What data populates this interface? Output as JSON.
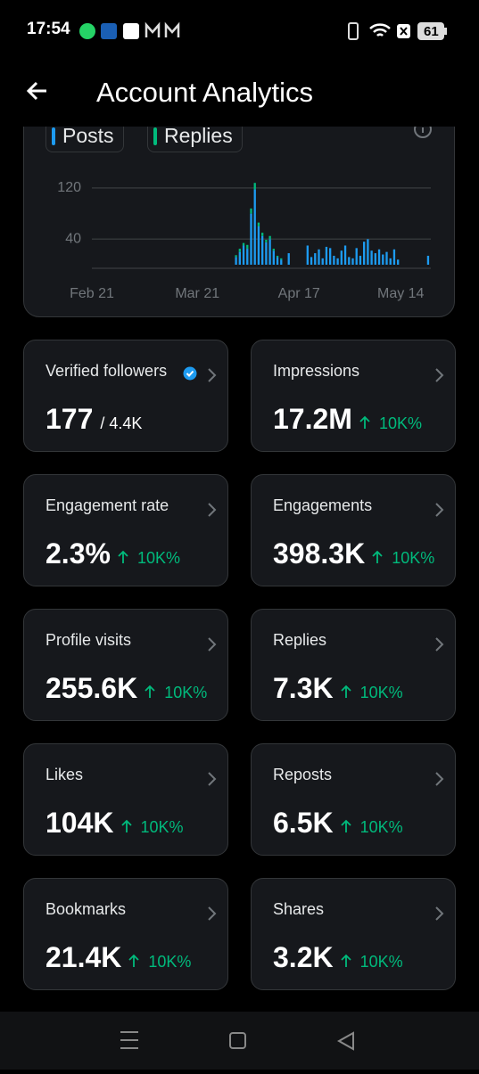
{
  "status_bar": {
    "time": "17:54",
    "battery": "61"
  },
  "header": {
    "title": "Account Analytics"
  },
  "chart_data": {
    "type": "bar",
    "stacked": true,
    "categories": [
      "Feb 21",
      null,
      null,
      null,
      null,
      null,
      null,
      null,
      null,
      null,
      null,
      null,
      null,
      null,
      null,
      null,
      null,
      null,
      null,
      null,
      null,
      null,
      null,
      null,
      null,
      null,
      null,
      null,
      "Mar 21",
      null,
      null,
      null,
      null,
      null,
      null,
      null,
      null,
      null,
      null,
      null,
      null,
      null,
      null,
      null,
      null,
      null,
      null,
      null,
      null,
      null,
      null,
      null,
      null,
      null,
      null,
      "Apr 17",
      null,
      null,
      null,
      null,
      null,
      null,
      null,
      null,
      null,
      null,
      null,
      null,
      null,
      null,
      null,
      null,
      null,
      null,
      null,
      null,
      null,
      null,
      null,
      null,
      null,
      null,
      "May 14",
      null,
      null,
      null,
      null,
      null,
      null,
      null
    ],
    "series": [
      {
        "name": "Posts",
        "color": "#1d9bf0",
        "values": [
          0,
          0,
          0,
          0,
          0,
          0,
          0,
          0,
          0,
          0,
          0,
          0,
          0,
          0,
          0,
          0,
          0,
          0,
          0,
          0,
          0,
          0,
          0,
          0,
          0,
          0,
          0,
          0,
          0,
          0,
          0,
          0,
          0,
          0,
          0,
          0,
          0,
          0,
          12,
          20,
          30,
          25,
          80,
          118,
          60,
          45,
          35,
          40,
          22,
          12,
          8,
          0,
          18,
          0,
          0,
          0,
          0,
          30,
          12,
          18,
          24,
          10,
          28,
          26,
          14,
          10,
          22,
          30,
          12,
          10,
          26,
          14,
          36,
          40,
          22,
          18,
          24,
          16,
          20,
          10,
          24,
          8,
          0,
          0,
          0,
          0,
          0,
          0,
          0,
          14
        ]
      },
      {
        "name": "Replies",
        "color": "#00ba7c",
        "values": [
          0,
          0,
          0,
          0,
          0,
          0,
          0,
          0,
          0,
          0,
          0,
          0,
          0,
          0,
          0,
          0,
          0,
          0,
          0,
          0,
          0,
          0,
          0,
          0,
          0,
          0,
          0,
          0,
          0,
          0,
          0,
          0,
          0,
          0,
          0,
          0,
          0,
          0,
          3,
          5,
          4,
          6,
          8,
          10,
          6,
          5,
          4,
          5,
          3,
          2,
          2,
          0,
          0,
          0,
          0,
          0,
          0,
          0,
          0,
          0,
          0,
          0,
          0,
          0,
          0,
          0,
          0,
          0,
          0,
          0,
          0,
          0,
          0,
          0,
          0,
          0,
          0,
          0,
          0,
          0,
          0,
          0,
          0,
          0,
          0,
          0,
          0,
          0,
          0,
          0
        ]
      }
    ],
    "ylim": [
      0,
      145
    ],
    "yticks": [
      40,
      120
    ],
    "grid": true
  },
  "metrics": [
    {
      "label": "Verified followers",
      "value": "177",
      "total": "/ 4.4K"
    },
    {
      "label": "Impressions",
      "value": "17.2M",
      "change": "10K%"
    },
    {
      "label": "Engagement rate",
      "value": "2.3%",
      "change": "10K%"
    },
    {
      "label": "Engagements",
      "value": "398.3K",
      "change": "10K%"
    },
    {
      "label": "Profile visits",
      "value": "255.6K",
      "change": "10K%"
    },
    {
      "label": "Replies",
      "value": "7.3K",
      "change": "10K%"
    },
    {
      "label": "Likes",
      "value": "104K",
      "change": "10K%"
    },
    {
      "label": "Reposts",
      "value": "6.5K",
      "change": "10K%"
    },
    {
      "label": "Bookmarks",
      "value": "21.4K",
      "change": "10K%"
    },
    {
      "label": "Shares",
      "value": "3.2K",
      "change": "10K%"
    }
  ]
}
